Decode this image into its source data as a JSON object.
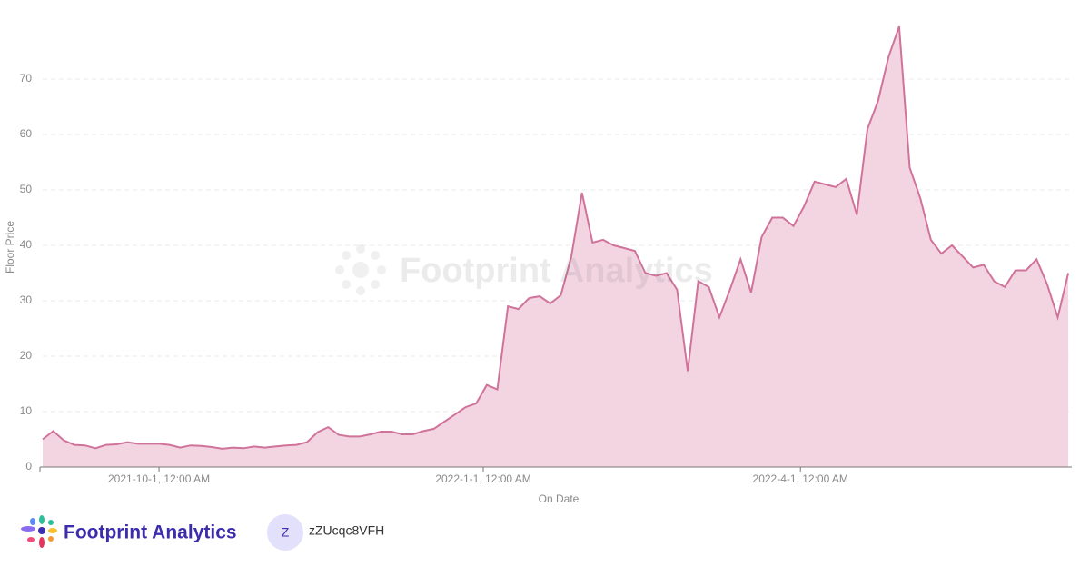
{
  "chart_data": {
    "type": "area",
    "x_label": "On Date",
    "y_label": "Floor Price",
    "watermark": "Footprint Analytics",
    "color": "#d0739a",
    "fill": "#f3d5e2",
    "grid": true,
    "x": [
      "2021-8-29",
      "2021-9-1",
      "2021-9-4",
      "2021-9-7",
      "2021-9-10",
      "2021-9-13",
      "2021-9-16",
      "2021-9-19",
      "2021-9-22",
      "2021-9-25",
      "2021-9-28",
      "2021-10-1",
      "2021-10-4",
      "2021-10-7",
      "2021-10-10",
      "2021-10-13",
      "2021-10-16",
      "2021-10-19",
      "2021-10-22",
      "2021-10-25",
      "2021-10-28",
      "2021-10-31",
      "2021-11-3",
      "2021-11-6",
      "2021-11-9",
      "2021-11-12",
      "2021-11-15",
      "2021-11-18",
      "2021-11-21",
      "2021-11-24",
      "2021-11-27",
      "2021-11-30",
      "2021-12-3",
      "2021-12-6",
      "2021-12-9",
      "2021-12-12",
      "2021-12-15",
      "2021-12-18",
      "2021-12-21",
      "2021-12-24",
      "2021-12-27",
      "2021-12-30",
      "2022-1-2",
      "2022-1-5",
      "2022-1-8",
      "2022-1-11",
      "2022-1-14",
      "2022-1-17",
      "2022-1-20",
      "2022-1-23",
      "2022-1-26",
      "2022-1-29",
      "2022-2-1",
      "2022-2-4",
      "2022-2-7",
      "2022-2-10",
      "2022-2-13",
      "2022-2-16",
      "2022-2-19",
      "2022-2-22",
      "2022-2-25",
      "2022-2-28",
      "2022-3-3",
      "2022-3-6",
      "2022-3-9",
      "2022-3-12",
      "2022-3-15",
      "2022-3-18",
      "2022-3-21",
      "2022-3-24",
      "2022-3-27",
      "2022-3-30",
      "2022-4-2",
      "2022-4-5",
      "2022-4-8",
      "2022-4-11",
      "2022-4-14",
      "2022-4-17",
      "2022-4-20",
      "2022-4-23",
      "2022-4-26",
      "2022-4-29",
      "2022-5-2",
      "2022-5-5",
      "2022-5-8",
      "2022-5-11",
      "2022-5-14",
      "2022-5-17",
      "2022-5-20",
      "2022-5-23",
      "2022-5-26",
      "2022-5-29",
      "2022-6-1",
      "2022-6-4",
      "2022-6-7",
      "2022-6-10",
      "2022-6-13",
      "2022-6-16"
    ],
    "values": [
      5,
      6.5,
      4.8,
      4.0,
      3.9,
      3.4,
      4.0,
      4.1,
      4.5,
      4.2,
      4.2,
      4.2,
      4.0,
      3.5,
      3.9,
      3.8,
      3.6,
      3.3,
      3.5,
      3.4,
      3.7,
      3.5,
      3.7,
      3.9,
      4.0,
      4.5,
      6.3,
      7.2,
      5.8,
      5.5,
      5.5,
      5.9,
      6.4,
      6.4,
      5.9,
      5.9,
      6.5,
      6.9,
      8.2,
      9.5,
      10.8,
      11.5,
      14.8,
      14.0,
      29.0,
      28.5,
      30.5,
      30.8,
      29.5,
      31.0,
      38.0,
      49.5,
      40.5,
      41.0,
      40.0,
      39.5,
      39.0,
      35.0,
      34.5,
      35.0,
      32.0,
      17.3,
      33.5,
      32.5,
      27.0,
      32.0,
      37.5,
      31.5,
      41.5,
      45.0,
      45.0,
      43.5,
      47.0,
      51.5,
      51.0,
      50.5,
      52.0,
      45.5,
      61.0,
      66.0,
      74.0,
      79.5,
      54.0,
      48.5,
      41.0,
      38.5,
      40.0,
      38.0,
      36.0,
      36.5,
      33.5,
      32.5,
      35.5,
      35.5,
      37.5,
      33.0,
      27.0,
      35.0
    ],
    "xlim": [
      "2021-8-29",
      "2022-6-17"
    ],
    "xticks": [
      {
        "value": "2021-10-1",
        "label": "2021-10-1, 12:00 AM"
      },
      {
        "value": "2022-1-1",
        "label": "2022-1-1, 12:00 AM"
      },
      {
        "value": "2022-4-1",
        "label": "2022-4-1, 12:00 AM"
      }
    ],
    "ylim": [
      0,
      80
    ],
    "yticks": [
      0,
      10,
      20,
      30,
      40,
      50,
      60,
      70
    ]
  },
  "footer": {
    "brand": "Footprint Analytics",
    "avatar": "Z",
    "user": "zZUcqc8VFH"
  }
}
